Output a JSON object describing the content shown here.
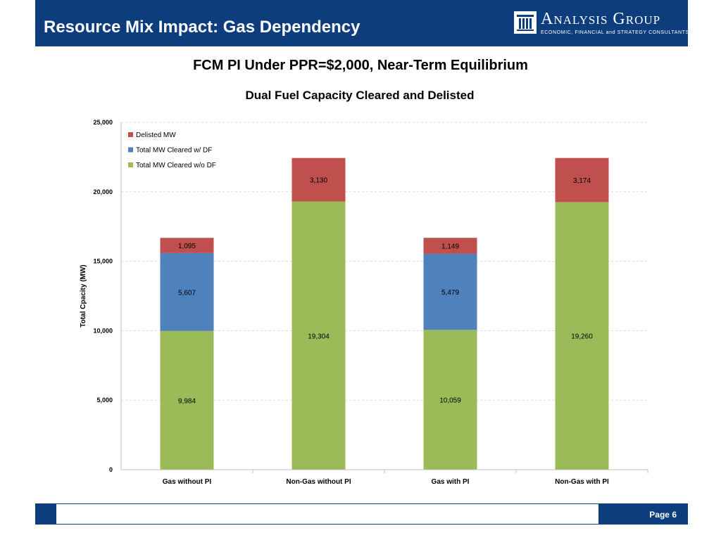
{
  "header": {
    "title": "Resource Mix Impact: Gas Dependency",
    "logo_name": "Analysis Group",
    "logo_tagline": "ECONOMIC, FINANCIAL and STRATEGY CONSULTANTS",
    "logo_icon": "building-columns-icon",
    "background_color": "#0d3d7d"
  },
  "subtitle": "FCM PI Under PPR=$2,000, Near-Term Equilibrium",
  "chart_data": {
    "type": "bar",
    "stacked": true,
    "title": "Dual Fuel Capacity Cleared and Delisted",
    "xlabel": "",
    "ylabel": "Total Cpacity (MW)",
    "ylim": [
      0,
      25000
    ],
    "yticks": [
      0,
      5000,
      10000,
      15000,
      20000,
      25000
    ],
    "ytick_labels": [
      "0",
      "5,000",
      "10,000",
      "15,000",
      "20,000",
      "25,000"
    ],
    "grid": true,
    "legend_position": "top-left",
    "categories": [
      "Gas without PI",
      "Non-Gas without PI",
      "Gas with PI",
      "Non-Gas with PI"
    ],
    "series": [
      {
        "name": "Total MW Cleared w/o DF",
        "color": "#9bbb59",
        "values": [
          9984,
          19304,
          10059,
          19260
        ],
        "labels": [
          "9,984",
          "19,304",
          "10,059",
          "19,260"
        ]
      },
      {
        "name": "Total MW Cleared w/ DF",
        "color": "#4f81bd",
        "values": [
          5607,
          0,
          5479,
          0
        ],
        "labels": [
          "5,607",
          "",
          "5,479",
          ""
        ]
      },
      {
        "name": "Delisted MW",
        "color": "#c0504d",
        "values": [
          1095,
          3130,
          1149,
          3174
        ],
        "labels": [
          "1,095",
          "3,130",
          "1,149",
          "3,174"
        ]
      }
    ],
    "legend_order": [
      "Delisted MW",
      "Total MW Cleared w/ DF",
      "Total MW Cleared w/o DF"
    ]
  },
  "footer": {
    "page_label": "Page 6"
  }
}
